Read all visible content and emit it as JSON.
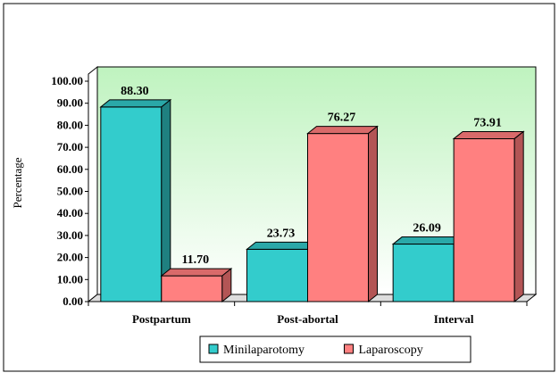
{
  "chart_data": {
    "type": "bar",
    "title": "",
    "xlabel": "",
    "ylabel": "Percentage",
    "ylim": [
      0,
      100
    ],
    "ytick_step": 10,
    "tick_decimals": 2,
    "categories": [
      "Postpartum",
      "Post-abortal",
      "Interval"
    ],
    "series": [
      {
        "name": "Minilaparotomy",
        "values": [
          88.3,
          23.73,
          26.09
        ],
        "labels": [
          "88.30",
          "23.73",
          "26.09"
        ]
      },
      {
        "name": "Laparoscopy",
        "values": [
          11.7,
          76.27,
          73.91
        ],
        "labels": [
          "11.70",
          "76.27",
          "73.91"
        ]
      }
    ],
    "legend_position": "bottom",
    "grid": false
  },
  "colors": {
    "series_fills": [
      "#33CCCC",
      "#FF8080"
    ],
    "series_tops": [
      "#2AA8A8",
      "#D96A6A"
    ],
    "series_sides": [
      "#1F8080",
      "#B35555"
    ],
    "wall_top": "#BFF3BF",
    "wall_bottom": "#FFFFFF",
    "floor": "#DDDDDD"
  }
}
